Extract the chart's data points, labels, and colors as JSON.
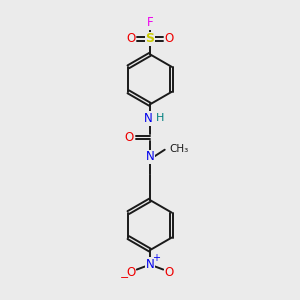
{
  "background_color": "#ebebeb",
  "bond_color": "#1a1a1a",
  "F_color": "#ee00ee",
  "S_color": "#cccc00",
  "O_color": "#ee0000",
  "N_color": "#0000ee",
  "H_color": "#008080",
  "C_color": "#1a1a1a",
  "lw": 1.4,
  "figsize": [
    3.0,
    3.0
  ],
  "dpi": 100,
  "xlim": [
    0,
    10
  ],
  "ylim": [
    0,
    10
  ]
}
